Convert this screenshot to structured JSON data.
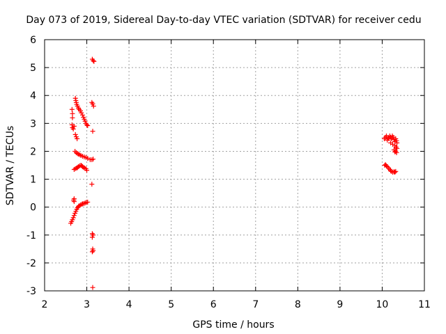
{
  "chart_data": {
    "type": "scatter",
    "title": "Day 073 of 2019, Sidereal Day-to-day VTEC variation (SDTVAR) for receiver cedu",
    "xlabel": "GPS time / hours",
    "ylabel": "SDTVAR / TECUs",
    "xlim": [
      2,
      11
    ],
    "ylim": [
      -3,
      6
    ],
    "xticks": [
      2,
      3,
      4,
      5,
      6,
      7,
      8,
      9,
      10,
      11
    ],
    "yticks": [
      -3,
      -2,
      -1,
      0,
      1,
      2,
      3,
      4,
      5,
      6
    ],
    "grid": true,
    "marker": "+",
    "color": "#ff0000",
    "series": [
      {
        "name": "SDTVAR",
        "points": [
          [
            2.65,
            3.5
          ],
          [
            2.66,
            3.35
          ],
          [
            2.66,
            3.2
          ],
          [
            2.65,
            2.95
          ],
          [
            2.66,
            2.85
          ],
          [
            2.68,
            2.8
          ],
          [
            2.7,
            2.9
          ],
          [
            2.7,
            0.3
          ],
          [
            2.7,
            0.2
          ],
          [
            2.69,
            0.25
          ],
          [
            2.62,
            -0.58
          ],
          [
            2.64,
            -0.52
          ],
          [
            2.66,
            -0.45
          ],
          [
            2.68,
            -0.38
          ],
          [
            2.7,
            -0.3
          ],
          [
            2.72,
            -0.22
          ],
          [
            2.74,
            -0.15
          ],
          [
            2.76,
            -0.08
          ],
          [
            2.78,
            -0.02
          ],
          [
            2.8,
            0.02
          ],
          [
            2.82,
            0.05
          ],
          [
            2.85,
            0.08
          ],
          [
            2.88,
            0.1
          ],
          [
            2.9,
            0.12
          ],
          [
            2.93,
            0.13
          ],
          [
            2.96,
            0.15
          ],
          [
            2.99,
            0.17
          ],
          [
            3.02,
            0.18
          ],
          [
            2.73,
            3.9
          ],
          [
            2.74,
            3.82
          ],
          [
            2.75,
            3.75
          ],
          [
            2.76,
            3.68
          ],
          [
            2.78,
            3.62
          ],
          [
            2.8,
            3.55
          ],
          [
            2.82,
            3.5
          ],
          [
            2.85,
            3.45
          ],
          [
            2.87,
            3.38
          ],
          [
            2.9,
            3.3
          ],
          [
            2.92,
            3.22
          ],
          [
            2.94,
            3.15
          ],
          [
            2.96,
            3.08
          ],
          [
            2.98,
            3.0
          ],
          [
            3.0,
            2.95
          ],
          [
            3.02,
            2.92
          ],
          [
            2.73,
            2.6
          ],
          [
            2.75,
            2.52
          ],
          [
            2.77,
            2.45
          ],
          [
            2.72,
            2.0
          ],
          [
            2.75,
            1.95
          ],
          [
            2.78,
            1.92
          ],
          [
            2.8,
            1.9
          ],
          [
            2.83,
            1.88
          ],
          [
            2.86,
            1.85
          ],
          [
            2.9,
            1.82
          ],
          [
            2.94,
            1.8
          ],
          [
            2.98,
            1.78
          ],
          [
            3.02,
            1.75
          ],
          [
            2.7,
            1.35
          ],
          [
            2.73,
            1.38
          ],
          [
            2.76,
            1.4
          ],
          [
            2.78,
            1.42
          ],
          [
            2.8,
            1.45
          ],
          [
            2.83,
            1.48
          ],
          [
            2.86,
            1.5
          ],
          [
            2.88,
            1.48
          ],
          [
            2.9,
            1.45
          ],
          [
            2.92,
            1.42
          ],
          [
            2.95,
            1.4
          ],
          [
            2.98,
            1.38
          ],
          [
            3.0,
            1.32
          ],
          [
            3.08,
            1.7
          ],
          [
            3.12,
            1.7
          ],
          [
            3.15,
            1.72
          ],
          [
            3.13,
            5.3
          ],
          [
            3.15,
            5.25
          ],
          [
            3.17,
            5.22
          ],
          [
            3.12,
            3.75
          ],
          [
            3.14,
            3.7
          ],
          [
            3.16,
            3.62
          ],
          [
            3.14,
            2.72
          ],
          [
            3.12,
            0.82
          ],
          [
            3.13,
            -0.95
          ],
          [
            3.15,
            -1.0
          ],
          [
            3.13,
            -1.08
          ],
          [
            3.14,
            -1.5
          ],
          [
            3.15,
            -1.56
          ],
          [
            3.13,
            -1.6
          ],
          [
            3.14,
            -2.88
          ],
          [
            10.05,
            2.45
          ],
          [
            10.08,
            2.5
          ],
          [
            10.1,
            2.55
          ],
          [
            10.12,
            2.4
          ],
          [
            10.14,
            2.5
          ],
          [
            10.16,
            2.45
          ],
          [
            10.18,
            2.55
          ],
          [
            10.2,
            2.5
          ],
          [
            10.22,
            2.45
          ],
          [
            10.24,
            2.55
          ],
          [
            10.26,
            2.5
          ],
          [
            10.28,
            2.42
          ],
          [
            10.3,
            2.35
          ],
          [
            10.32,
            2.45
          ],
          [
            10.34,
            2.38
          ],
          [
            10.35,
            2.3
          ],
          [
            10.2,
            2.3
          ],
          [
            10.25,
            2.25
          ],
          [
            10.3,
            2.2
          ],
          [
            10.33,
            2.15
          ],
          [
            10.35,
            2.1
          ],
          [
            10.28,
            2.05
          ],
          [
            10.3,
            1.98
          ],
          [
            10.32,
            2.0
          ],
          [
            10.34,
            1.95
          ],
          [
            10.06,
            1.5
          ],
          [
            10.08,
            1.52
          ],
          [
            10.1,
            1.48
          ],
          [
            10.12,
            1.45
          ],
          [
            10.15,
            1.4
          ],
          [
            10.18,
            1.35
          ],
          [
            10.2,
            1.3
          ],
          [
            10.22,
            1.28
          ],
          [
            10.25,
            1.25
          ],
          [
            10.28,
            1.27
          ],
          [
            10.3,
            1.25
          ],
          [
            10.32,
            1.28
          ]
        ]
      }
    ]
  }
}
